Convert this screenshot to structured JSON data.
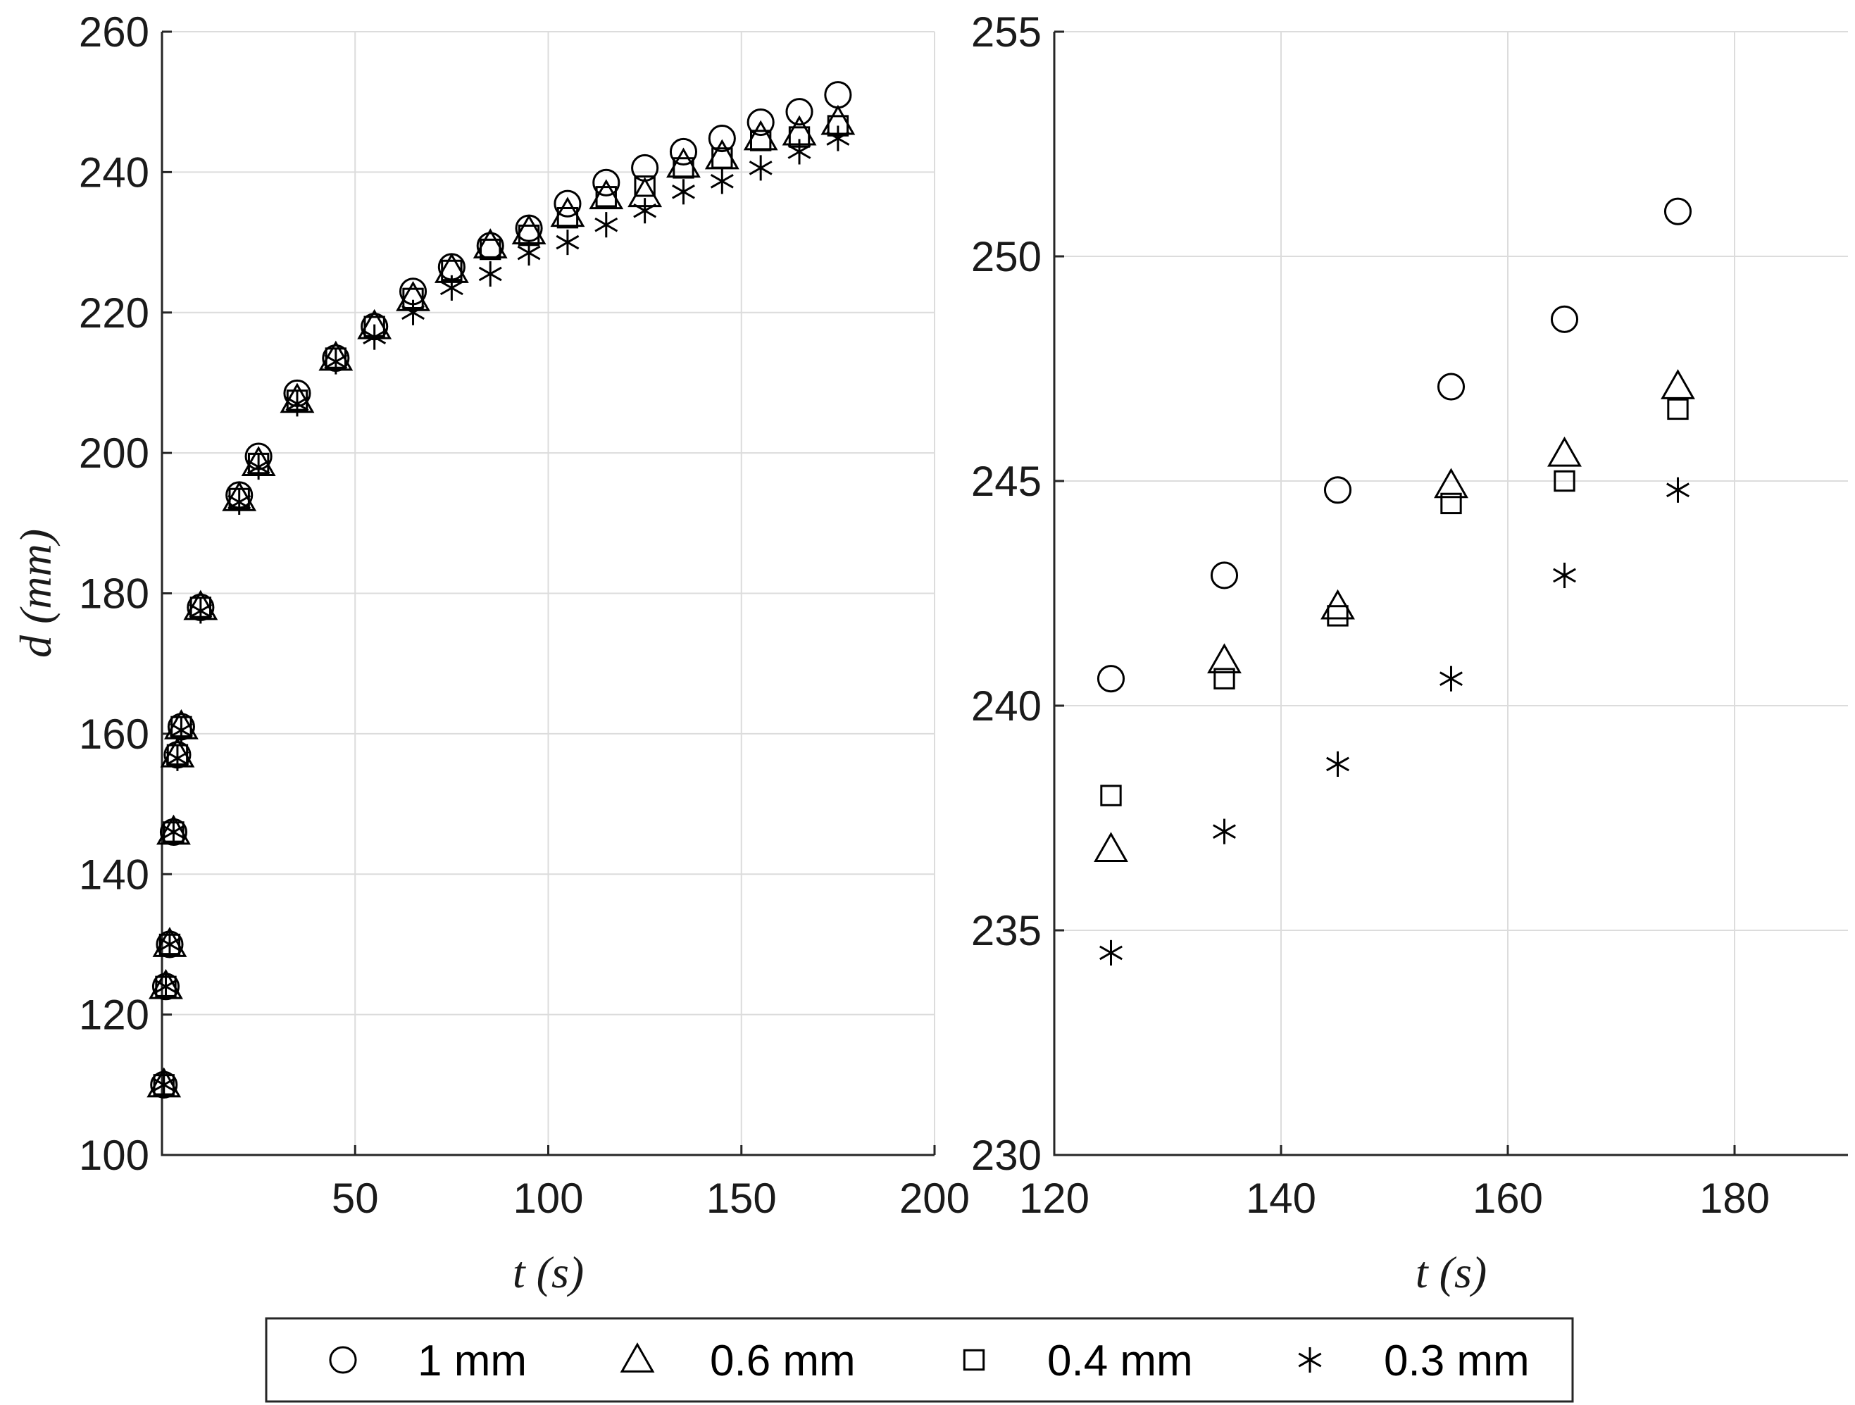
{
  "chart_data": [
    {
      "type": "scatter",
      "xlabel": "t (s)",
      "ylabel": "d (mm)",
      "xlim": [
        0,
        200
      ],
      "ylim": [
        100,
        260
      ],
      "xticks": [
        50,
        100,
        150,
        200
      ],
      "yticks": [
        100,
        120,
        140,
        160,
        180,
        200,
        220,
        240,
        260
      ],
      "grid": true,
      "series": [
        {
          "name": "1 mm",
          "marker": "circle",
          "x": [
            0.5,
            1,
            2,
            3,
            4,
            5,
            10,
            20,
            25,
            35,
            45,
            55,
            65,
            75,
            85,
            95,
            105,
            115,
            125,
            135,
            145,
            155,
            165,
            175
          ],
          "y": [
            110,
            124,
            130,
            146,
            157,
            161,
            178,
            194,
            199.5,
            208.5,
            213.5,
            218,
            223,
            226.5,
            229.5,
            232,
            235.5,
            238.5,
            240.6,
            242.9,
            244.8,
            247.1,
            248.6,
            251
          ]
        },
        {
          "name": "0.6 mm",
          "marker": "triangle",
          "x": [
            0.5,
            1,
            2,
            3,
            4,
            5,
            10,
            20,
            25,
            35,
            45,
            55,
            65,
            75,
            85,
            95,
            105,
            115,
            125,
            135,
            145,
            155,
            165,
            175
          ],
          "y": [
            110,
            124,
            130,
            146,
            157,
            161,
            178,
            193.5,
            198.5,
            207.5,
            213.5,
            218,
            222,
            226,
            229.5,
            231.5,
            234,
            236.5,
            236.8,
            241,
            242.2,
            244.9,
            245.6,
            247.1
          ]
        },
        {
          "name": "0.4 mm",
          "marker": "square",
          "x": [
            0.5,
            1,
            2,
            3,
            4,
            5,
            10,
            20,
            25,
            35,
            45,
            55,
            65,
            75,
            85,
            95,
            105,
            115,
            125,
            135,
            145,
            155,
            165,
            175
          ],
          "y": [
            110,
            124,
            130,
            146,
            157,
            161,
            178,
            193.5,
            198.5,
            207.5,
            213.5,
            218,
            222,
            226,
            229,
            231,
            233.5,
            236.5,
            238,
            240.6,
            242,
            244.5,
            245,
            246.6
          ]
        },
        {
          "name": "0.3 mm",
          "marker": "asterisk",
          "x": [
            0.5,
            1,
            2,
            3,
            4,
            5,
            10,
            20,
            25,
            35,
            45,
            55,
            65,
            75,
            85,
            95,
            105,
            115,
            125,
            135,
            145,
            155,
            165,
            175
          ],
          "y": [
            110,
            124,
            130,
            146,
            156.5,
            160.5,
            177.5,
            193,
            198,
            207,
            213,
            216.5,
            220,
            223.5,
            225.5,
            228.5,
            230,
            232.5,
            234.5,
            237.2,
            238.7,
            240.6,
            242.9,
            244.8
          ]
        }
      ]
    },
    {
      "type": "scatter",
      "xlabel": "t (s)",
      "ylabel": "",
      "xlim": [
        120,
        190
      ],
      "ylim": [
        230,
        255
      ],
      "xticks": [
        120,
        140,
        160,
        180
      ],
      "yticks": [
        230,
        235,
        240,
        245,
        250,
        255
      ],
      "grid": true,
      "series": [
        {
          "name": "1 mm",
          "marker": "circle",
          "x": [
            125,
            135,
            145,
            155,
            165,
            175
          ],
          "y": [
            240.6,
            242.9,
            244.8,
            247.1,
            248.6,
            251
          ]
        },
        {
          "name": "0.6 mm",
          "marker": "triangle",
          "x": [
            125,
            135,
            145,
            155,
            165,
            175
          ],
          "y": [
            236.8,
            241,
            242.2,
            244.9,
            245.6,
            247.1
          ]
        },
        {
          "name": "0.4 mm",
          "marker": "square",
          "x": [
            125,
            135,
            145,
            155,
            165,
            175
          ],
          "y": [
            238,
            240.6,
            242,
            244.5,
            245,
            246.6
          ]
        },
        {
          "name": "0.3 mm",
          "marker": "asterisk",
          "x": [
            125,
            135,
            145,
            155,
            165,
            175
          ],
          "y": [
            234.5,
            237.2,
            238.7,
            240.6,
            242.9,
            244.8
          ]
        }
      ]
    }
  ],
  "legend": {
    "placement": "bottom",
    "entries": [
      {
        "label": "1 mm",
        "marker": "circle"
      },
      {
        "label": "0.6 mm",
        "marker": "triangle"
      },
      {
        "label": "0.4 mm",
        "marker": "square"
      },
      {
        "label": "0.3 mm",
        "marker": "asterisk"
      }
    ]
  }
}
